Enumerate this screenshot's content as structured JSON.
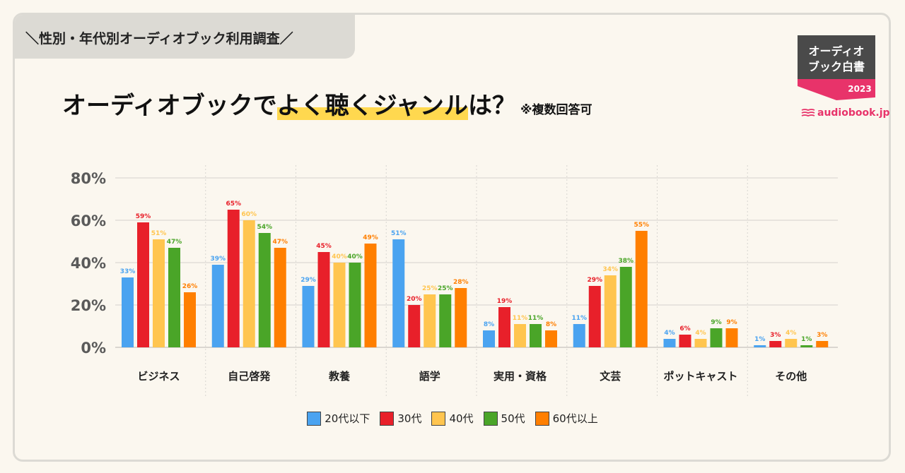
{
  "header": {
    "tag": "＼性別・年代別オーディオブック利用調査／",
    "headline_plain": "オーディオブックで",
    "headline_highlight": "よく聴くジャンル",
    "headline_end": "は？",
    "headline_note": "※複数回答可"
  },
  "badge": {
    "line1": "オーディオ",
    "line2": "ブック白書",
    "year": "2023"
  },
  "brand": "audiobook.jp",
  "colors": {
    "background": "#fbf7ef",
    "highlight": "#ffd84f",
    "badge_dark": "#4a4a4a",
    "badge_pink": "#e8336a",
    "brand": "#e8336a"
  },
  "chart_data": {
    "type": "bar",
    "categories": [
      "ビジネス",
      "自己啓発",
      "教養",
      "語学",
      "実用・資格",
      "文芸",
      "ポットキャスト",
      "その他"
    ],
    "series": [
      {
        "name": "20代以下",
        "color": "#4aa3f0",
        "values": [
          33,
          39,
          29,
          51,
          8,
          11,
          4,
          1
        ]
      },
      {
        "name": "30代",
        "color": "#e8202a",
        "values": [
          59,
          65,
          45,
          20,
          19,
          29,
          6,
          3
        ]
      },
      {
        "name": "40代",
        "color": "#ffc54f",
        "values": [
          51,
          60,
          40,
          25,
          11,
          34,
          4,
          4
        ]
      },
      {
        "name": "50代",
        "color": "#4aa528",
        "values": [
          47,
          54,
          40,
          25,
          11,
          38,
          9,
          1
        ]
      },
      {
        "name": "60代以上",
        "color": "#ff7f00",
        "values": [
          26,
          47,
          49,
          28,
          8,
          55,
          9,
          3
        ]
      }
    ],
    "yticks": [
      "0%",
      "20%",
      "40%",
      "60%",
      "80%"
    ],
    "ylim": [
      0,
      80
    ],
    "grid": true,
    "legend": "bottom"
  }
}
